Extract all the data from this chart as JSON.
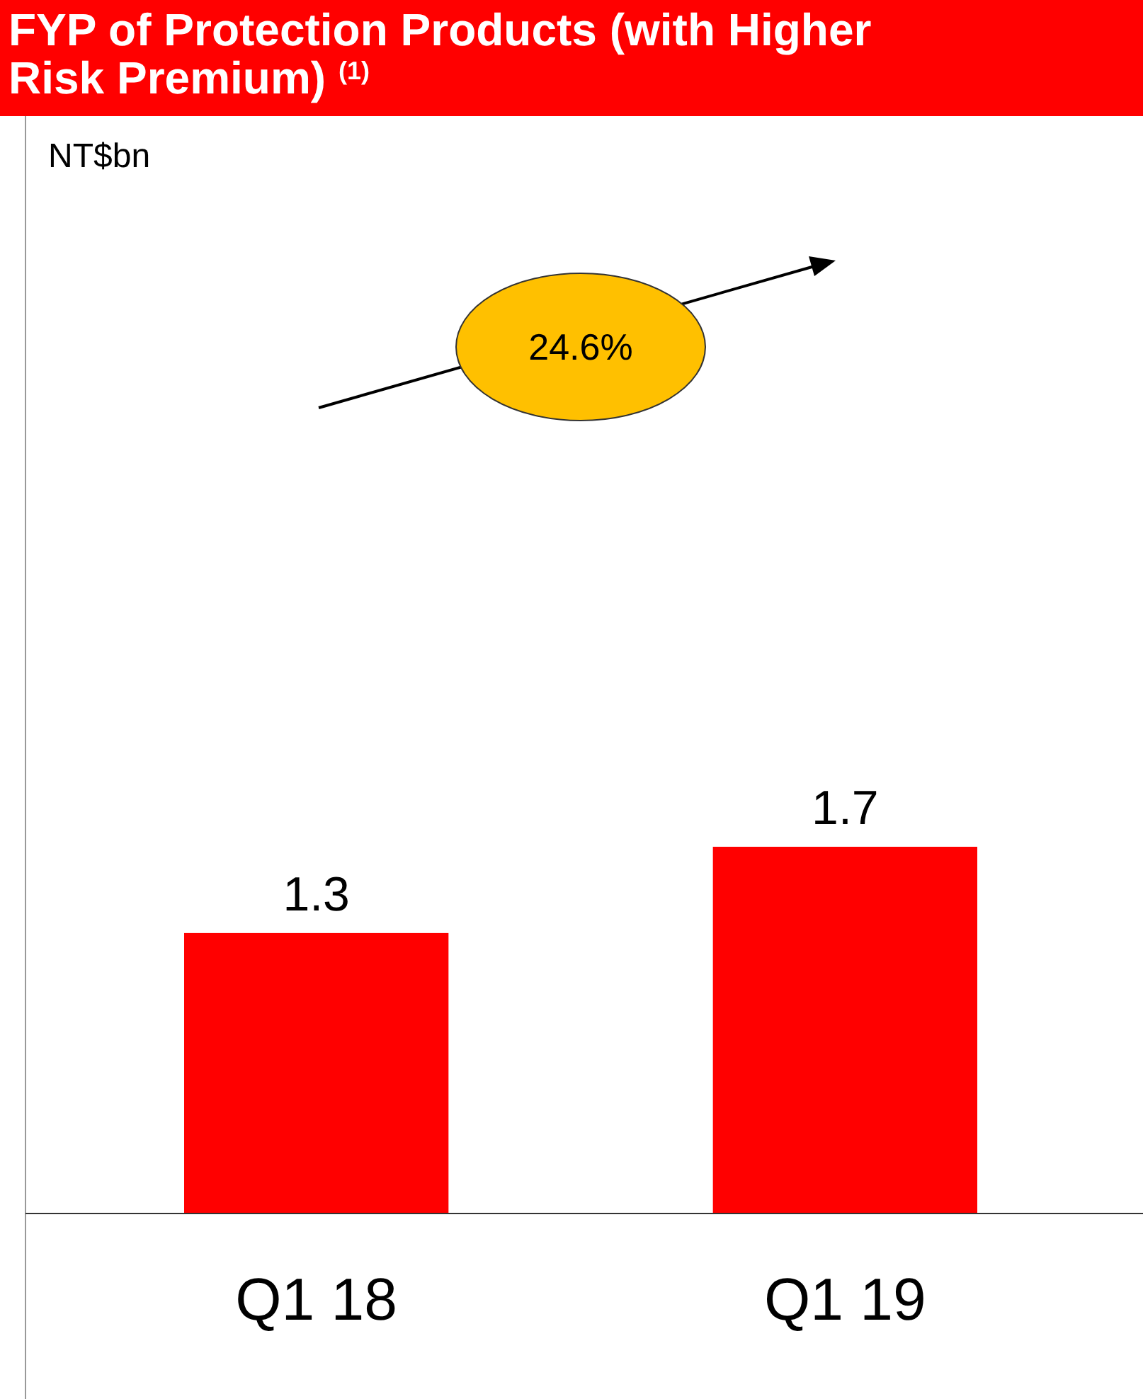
{
  "chart_data": {
    "type": "bar",
    "title": "FYP of Protection Products (with Higher Risk Premium) $^{(1)}$",
    "categories": [
      "Q1 18",
      "Q1 19"
    ],
    "values": [
      1.3,
      1.7
    ],
    "color": "#ff0000",
    "data_labels": true,
    "annotations": [
      "NT$bn",
      "24.6%"
    ]
  }
}
